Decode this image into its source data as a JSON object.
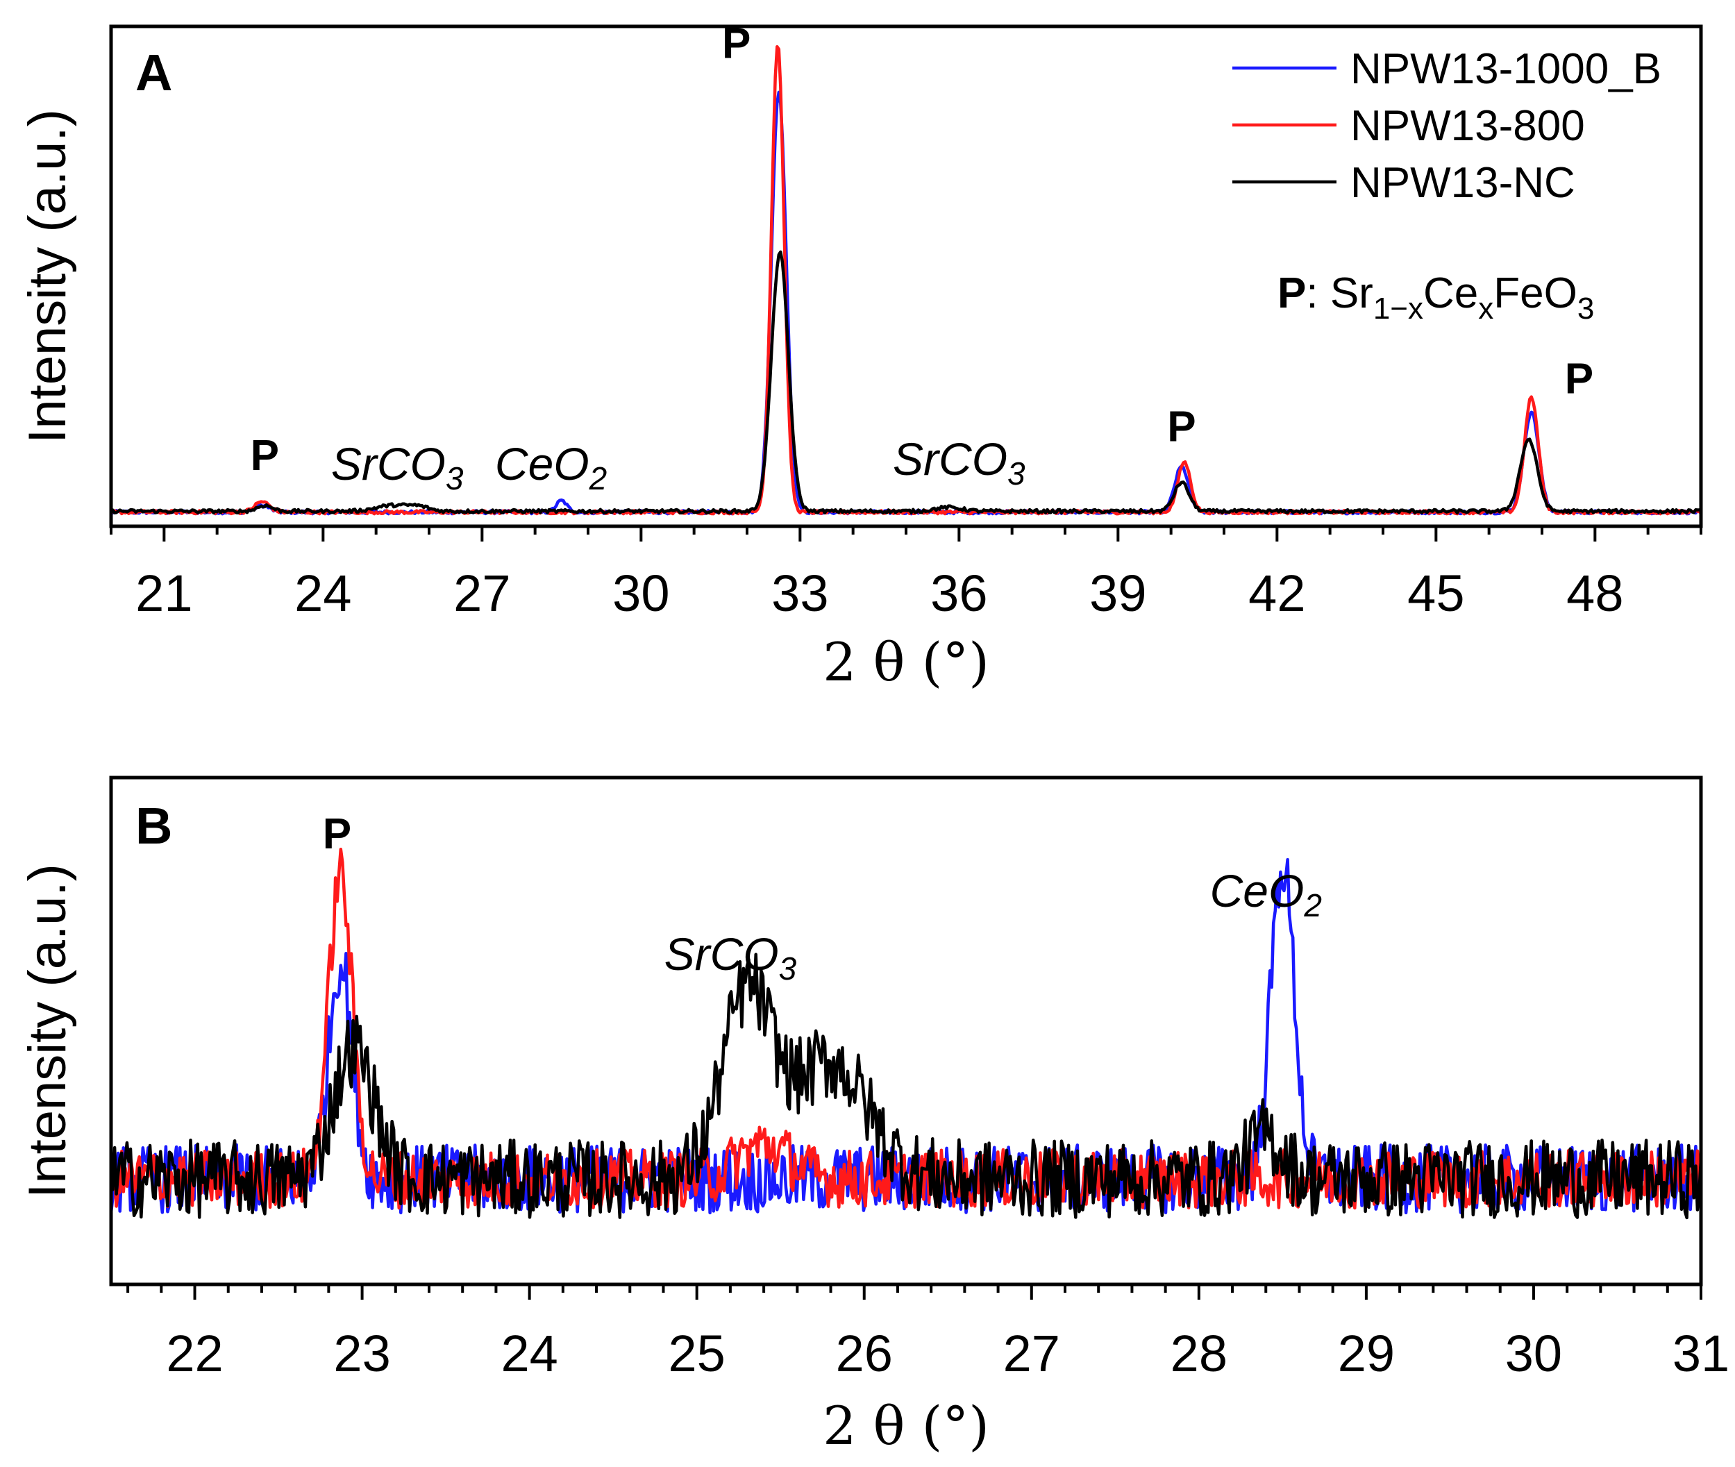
{
  "chart_data": [
    {
      "panel": "A",
      "type": "line",
      "xlabel_prefix": "2 ",
      "xlabel_theta": "θ",
      "xlabel_suffix": " (°)",
      "ylabel": "Intensity (a.u.)",
      "xlim": [
        20,
        50
      ],
      "ylim": [
        0,
        100
      ],
      "grid": false,
      "xticks": [
        21,
        24,
        27,
        30,
        33,
        36,
        39,
        42,
        45,
        48
      ],
      "legend": {
        "position": "top-right",
        "entries": [
          {
            "name": "NPW13-1000_B",
            "color": "#1a1aff"
          },
          {
            "name": "NPW13-800",
            "color": "#ff1a1a"
          },
          {
            "name": "NPW13-NC",
            "color": "#000000"
          }
        ]
      },
      "legend_note": {
        "symbol": "P",
        "sep": ": ",
        "formula": [
          {
            "t": "Sr"
          },
          {
            "t": "1−x",
            "sub": true
          },
          {
            "t": "Ce"
          },
          {
            "t": "x",
            "sub": true
          },
          {
            "t": "FeO"
          },
          {
            "t": "3",
            "sub": true
          }
        ]
      },
      "series": [
        {
          "name": "NPW13-1000_B",
          "color": "#1a1aff",
          "baseline": 1.2,
          "noise": 0.35,
          "peaks": [
            {
              "x": 22.85,
              "h": 1.4,
              "w": 0.14
            },
            {
              "x": 28.5,
              "h": 2.4,
              "w": 0.1
            },
            {
              "x": 32.6,
              "h": 88,
              "w": 0.14
            },
            {
              "x": 40.2,
              "h": 9.5,
              "w": 0.13
            },
            {
              "x": 46.8,
              "h": 21,
              "w": 0.14
            }
          ]
        },
        {
          "name": "NPW13-800",
          "color": "#ff1a1a",
          "baseline": 1.2,
          "noise": 0.35,
          "peaks": [
            {
              "x": 22.85,
              "h": 2.2,
              "w": 0.14
            },
            {
              "x": 32.58,
              "h": 98,
              "w": 0.12
            },
            {
              "x": 40.25,
              "h": 10.5,
              "w": 0.12
            },
            {
              "x": 46.8,
              "h": 24,
              "w": 0.13
            }
          ]
        },
        {
          "name": "NPW13-NC",
          "color": "#000000",
          "baseline": 1.4,
          "noise": 0.35,
          "peaks": [
            {
              "x": 22.9,
              "h": 1.2,
              "w": 0.14
            },
            {
              "x": 25.3,
              "h": 1.2,
              "w": 0.3
            },
            {
              "x": 25.8,
              "h": 0.9,
              "w": 0.2
            },
            {
              "x": 35.8,
              "h": 0.8,
              "w": 0.25
            },
            {
              "x": 32.62,
              "h": 54,
              "w": 0.16
            },
            {
              "x": 40.2,
              "h": 6,
              "w": 0.14
            },
            {
              "x": 46.75,
              "h": 15,
              "w": 0.16
            }
          ]
        }
      ],
      "annotations": [
        {
          "text": "P",
          "x": 22.9,
          "y": 10,
          "style": "bold"
        },
        {
          "text": "SrCO",
          "sub": "3",
          "x": 25.4,
          "y": 8,
          "style": "italic"
        },
        {
          "text": "CeO",
          "sub": "2",
          "x": 28.3,
          "y": 8,
          "style": "italic"
        },
        {
          "text": "P",
          "x": 31.8,
          "y": 96,
          "style": "bold"
        },
        {
          "text": "SrCO",
          "sub": "3",
          "x": 36.0,
          "y": 9,
          "style": "italic"
        },
        {
          "text": "P",
          "x": 40.2,
          "y": 16,
          "style": "bold"
        },
        {
          "text": "P",
          "x": 47.7,
          "y": 26,
          "style": "bold"
        }
      ]
    },
    {
      "panel": "B",
      "type": "line",
      "xlabel_prefix": "2 ",
      "xlabel_theta": "θ",
      "xlabel_suffix": " (°)",
      "ylabel": "Intensity (a.u.)",
      "xlim": [
        21.5,
        31
      ],
      "ylim": [
        0,
        100
      ],
      "grid": false,
      "xticks": [
        22,
        23,
        24,
        25,
        26,
        27,
        28,
        29,
        30,
        31
      ],
      "series": [
        {
          "name": "NPW13-1000_B",
          "color": "#1a1aff",
          "baseline": 20,
          "noise": 7,
          "peaks": [
            {
              "x": 22.87,
              "h": 45,
              "w": 0.07
            },
            {
              "x": 28.5,
              "h": 65,
              "w": 0.07
            }
          ]
        },
        {
          "name": "NPW13-800",
          "color": "#ff1a1a",
          "baseline": 20,
          "noise": 6,
          "peaks": [
            {
              "x": 22.87,
              "h": 63,
              "w": 0.07
            },
            {
              "x": 25.4,
              "h": 7,
              "w": 0.15
            }
          ]
        },
        {
          "name": "NPW13-NC",
          "color": "#000000",
          "baseline": 20,
          "noise": 8,
          "peaks": [
            {
              "x": 22.95,
              "h": 27,
              "w": 0.12
            },
            {
              "x": 25.3,
              "h": 38,
              "w": 0.15
            },
            {
              "x": 25.8,
              "h": 24,
              "w": 0.22
            },
            {
              "x": 28.4,
              "h": 9,
              "w": 0.1
            }
          ]
        }
      ],
      "annotations": [
        {
          "text": "P",
          "x": 22.85,
          "y": 88,
          "style": "bold"
        },
        {
          "text": "SrCO",
          "sub": "3",
          "x": 25.2,
          "y": 63,
          "style": "italic"
        },
        {
          "text": "CeO",
          "sub": "2",
          "x": 28.4,
          "y": 76,
          "style": "italic"
        }
      ]
    }
  ]
}
